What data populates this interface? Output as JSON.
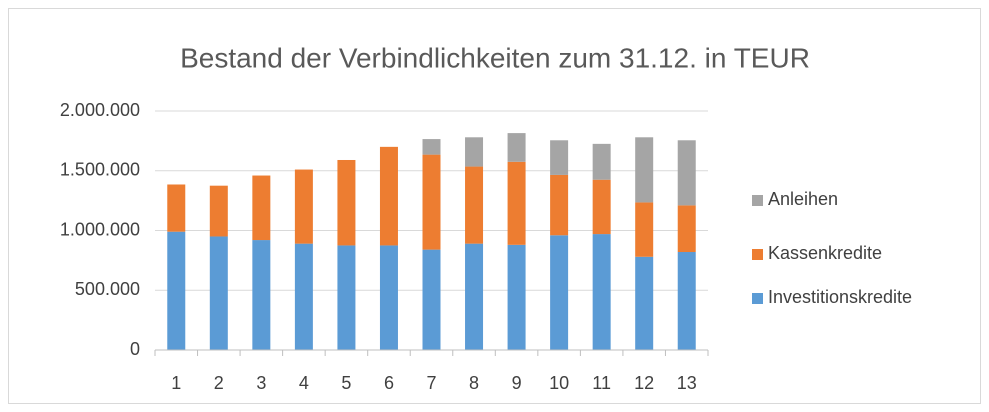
{
  "chart_data": {
    "type": "stacked_bar",
    "title": "Bestand der Verbindlichkeiten zum 31.12. in TEUR",
    "categories": [
      "1",
      "2",
      "3",
      "4",
      "5",
      "6",
      "7",
      "8",
      "9",
      "10",
      "11",
      "12",
      "13"
    ],
    "series": [
      {
        "name": "Investitionskredite",
        "color": "#5b9bd5",
        "values": [
          990000,
          950000,
          920000,
          890000,
          875000,
          875000,
          840000,
          890000,
          880000,
          960000,
          970000,
          780000,
          820000
        ]
      },
      {
        "name": "Kassenkredite",
        "color": "#ed7d31",
        "values": [
          395000,
          425000,
          540000,
          620000,
          715000,
          825000,
          795000,
          645000,
          695000,
          505000,
          455000,
          455000,
          390000
        ]
      },
      {
        "name": "Anleihen",
        "color": "#a5a5a5",
        "values": [
          0,
          0,
          0,
          0,
          0,
          0,
          130000,
          245000,
          240000,
          290000,
          300000,
          545000,
          545000
        ]
      }
    ],
    "ylim": [
      0,
      2000000
    ],
    "yticks": [
      0,
      {
        "value": 500000,
        "label": "500.000"
      },
      {
        "value": 1000000,
        "label": "1.000.000"
      },
      {
        "value": 1500000,
        "label": "1.500.000"
      },
      {
        "value": 2000000,
        "label": "2.000.000"
      }
    ],
    "grid": true,
    "legend": "right"
  }
}
